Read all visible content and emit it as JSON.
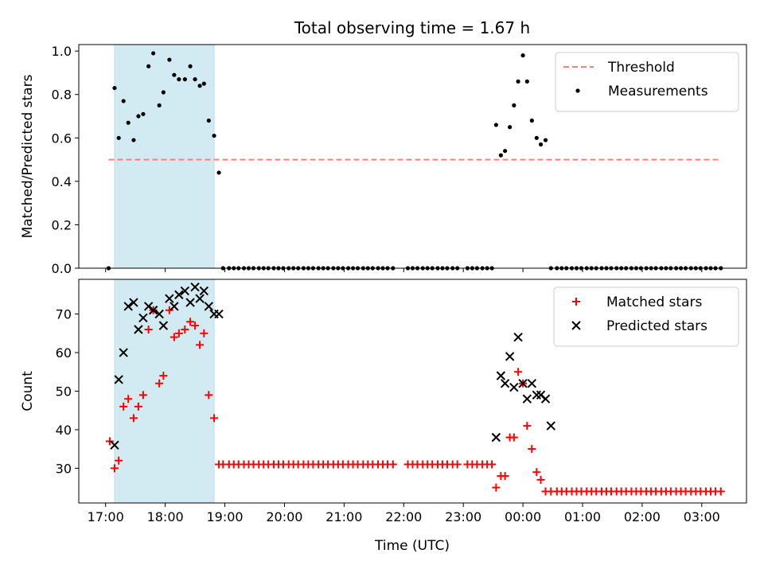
{
  "figure": {
    "title": "Total observing time = 1.67 h",
    "xlabel": "Time (UTC)",
    "xticklabels": [
      "17:00",
      "18:00",
      "19:00",
      "20:00",
      "21:00",
      "22:00",
      "23:00",
      "00:00",
      "01:00",
      "02:00",
      "03:00"
    ]
  },
  "chart_data": [
    {
      "type": "scatter",
      "ylabel": "Matched/Predicted stars",
      "xlim": [
        16.55,
        27.75
      ],
      "ylim": [
        0,
        1.03
      ],
      "yticks": [
        0.0,
        0.2,
        0.4,
        0.6,
        0.8,
        1.0
      ],
      "yticklabels": [
        "0.0",
        "0.2",
        "0.4",
        "0.6",
        "0.8",
        "1.0"
      ],
      "legend_position": "top-right",
      "shaded_span": {
        "x0": 17.15,
        "x1": 18.82,
        "color": "#add8e6"
      },
      "threshold": {
        "name": "Threshold",
        "y": 0.5,
        "x0": 17.05,
        "x1": 27.3,
        "color": "#ff7f7f",
        "style": "dashed"
      },
      "series": [
        {
          "name": "Measurements",
          "marker": "dot",
          "color": "#000000",
          "x": [
            17.05,
            17.15,
            17.22,
            17.3,
            17.38,
            17.47,
            17.55,
            17.63,
            17.72,
            17.8,
            17.9,
            17.97,
            18.07,
            18.15,
            18.23,
            18.33,
            18.42,
            18.5,
            18.58,
            18.65,
            18.73,
            18.82,
            18.9,
            18.97,
            19.07,
            19.15,
            19.23,
            19.32,
            19.4,
            19.48,
            19.57,
            19.65,
            19.73,
            19.82,
            19.9,
            19.98,
            20.07,
            20.15,
            20.23,
            20.32,
            20.4,
            20.48,
            20.57,
            20.65,
            20.73,
            20.82,
            20.9,
            20.98,
            21.07,
            21.15,
            21.23,
            21.32,
            21.4,
            21.48,
            21.57,
            21.65,
            21.73,
            21.82,
            22.07,
            22.15,
            22.23,
            22.32,
            22.4,
            22.48,
            22.57,
            22.65,
            22.73,
            22.82,
            22.9,
            23.07,
            23.15,
            23.23,
            23.32,
            23.4,
            23.48,
            23.55,
            23.63,
            23.7,
            23.78,
            23.85,
            23.92,
            24.0,
            24.07,
            24.15,
            24.23,
            24.3,
            24.38,
            24.47,
            24.57,
            24.65,
            24.73,
            24.82,
            24.9,
            24.98,
            25.07,
            25.15,
            25.23,
            25.32,
            25.4,
            25.48,
            25.57,
            25.65,
            25.73,
            25.82,
            25.9,
            25.98,
            26.07,
            26.15,
            26.23,
            26.32,
            26.4,
            26.48,
            26.57,
            26.65,
            26.73,
            26.82,
            26.9,
            26.98,
            27.07,
            27.15,
            27.23,
            27.32
          ],
          "y": [
            0.0,
            0.83,
            0.6,
            0.77,
            0.67,
            0.59,
            0.7,
            0.71,
            0.93,
            0.99,
            0.75,
            0.81,
            0.96,
            0.89,
            0.87,
            0.87,
            0.93,
            0.87,
            0.84,
            0.85,
            0.68,
            0.61,
            0.44,
            0.0,
            0.0,
            0.0,
            0.0,
            0.0,
            0.0,
            0.0,
            0.0,
            0.0,
            0.0,
            0.0,
            0.0,
            0.0,
            0.0,
            0.0,
            0.0,
            0.0,
            0.0,
            0.0,
            0.0,
            0.0,
            0.0,
            0.0,
            0.0,
            0.0,
            0.0,
            0.0,
            0.0,
            0.0,
            0.0,
            0.0,
            0.0,
            0.0,
            0.0,
            0.0,
            0.0,
            0.0,
            0.0,
            0.0,
            0.0,
            0.0,
            0.0,
            0.0,
            0.0,
            0.0,
            0.0,
            0.0,
            0.0,
            0.0,
            0.0,
            0.0,
            0.0,
            0.66,
            0.52,
            0.54,
            0.65,
            0.75,
            0.86,
            0.98,
            0.86,
            0.68,
            0.6,
            0.57,
            0.59,
            0.0,
            0.0,
            0.0,
            0.0,
            0.0,
            0.0,
            0.0,
            0.0,
            0.0,
            0.0,
            0.0,
            0.0,
            0.0,
            0.0,
            0.0,
            0.0,
            0.0,
            0.0,
            0.0,
            0.0,
            0.0,
            0.0,
            0.0,
            0.0,
            0.0,
            0.0,
            0.0,
            0.0,
            0.0,
            0.0,
            0.0,
            0.0,
            0.0,
            0.0,
            0.0
          ]
        }
      ]
    },
    {
      "type": "scatter",
      "ylabel": "Count",
      "xlim": [
        16.55,
        27.75
      ],
      "ylim": [
        21,
        79
      ],
      "yticks": [
        30,
        40,
        50,
        60,
        70
      ],
      "yticklabels": [
        "30",
        "40",
        "50",
        "60",
        "70"
      ],
      "legend_position": "top-right",
      "shaded_span": {
        "x0": 17.15,
        "x1": 18.82,
        "color": "#add8e6"
      },
      "series": [
        {
          "name": "Matched stars",
          "marker": "plus",
          "color": "#ff0000",
          "x": [
            17.07,
            17.15,
            17.22,
            17.3,
            17.38,
            17.47,
            17.55,
            17.63,
            17.72,
            17.8,
            17.9,
            17.97,
            18.07,
            18.15,
            18.23,
            18.33,
            18.42,
            18.5,
            18.58,
            18.65,
            18.73,
            18.82,
            18.9,
            18.97,
            19.07,
            19.15,
            19.23,
            19.32,
            19.4,
            19.48,
            19.57,
            19.65,
            19.73,
            19.82,
            19.9,
            19.98,
            20.07,
            20.15,
            20.23,
            20.32,
            20.4,
            20.48,
            20.57,
            20.65,
            20.73,
            20.82,
            20.9,
            20.98,
            21.07,
            21.15,
            21.23,
            21.32,
            21.4,
            21.48,
            21.57,
            21.65,
            21.73,
            21.82,
            22.07,
            22.15,
            22.23,
            22.32,
            22.4,
            22.48,
            22.57,
            22.65,
            22.73,
            22.82,
            22.9,
            23.07,
            23.15,
            23.23,
            23.32,
            23.4,
            23.48,
            23.55,
            23.63,
            23.7,
            23.78,
            23.85,
            23.92,
            24.0,
            24.07,
            24.15,
            24.23,
            24.3,
            24.38,
            24.47,
            24.57,
            24.65,
            24.73,
            24.82,
            24.9,
            24.98,
            25.07,
            25.15,
            25.23,
            25.32,
            25.4,
            25.48,
            25.57,
            25.65,
            25.73,
            25.82,
            25.9,
            25.98,
            26.07,
            26.15,
            26.23,
            26.32,
            26.4,
            26.48,
            26.57,
            26.65,
            26.73,
            26.82,
            26.9,
            26.98,
            27.07,
            27.15,
            27.23,
            27.32
          ],
          "y": [
            37,
            30,
            32,
            46,
            48,
            43,
            46,
            49,
            66,
            71,
            52,
            54,
            71,
            64,
            65,
            66,
            68,
            67,
            62,
            65,
            49,
            43,
            31,
            31,
            31,
            31,
            31,
            31,
            31,
            31,
            31,
            31,
            31,
            31,
            31,
            31,
            31,
            31,
            31,
            31,
            31,
            31,
            31,
            31,
            31,
            31,
            31,
            31,
            31,
            31,
            31,
            31,
            31,
            31,
            31,
            31,
            31,
            31,
            31,
            31,
            31,
            31,
            31,
            31,
            31,
            31,
            31,
            31,
            31,
            31,
            31,
            31,
            31,
            31,
            31,
            25,
            28,
            28,
            38,
            38,
            55,
            52,
            41,
            35,
            29,
            27,
            24,
            24,
            24,
            24,
            24,
            24,
            24,
            24,
            24,
            24,
            24,
            24,
            24,
            24,
            24,
            24,
            24,
            24,
            24,
            24,
            24,
            24,
            24,
            24,
            24,
            24,
            24,
            24,
            24,
            24,
            24,
            24,
            24,
            24,
            24,
            24
          ]
        },
        {
          "name": "Predicted stars",
          "marker": "x",
          "color": "#000000",
          "x": [
            17.15,
            17.22,
            17.3,
            17.38,
            17.47,
            17.55,
            17.63,
            17.72,
            17.8,
            17.9,
            17.97,
            18.07,
            18.15,
            18.23,
            18.33,
            18.42,
            18.5,
            18.58,
            18.65,
            18.73,
            18.82,
            18.9,
            23.55,
            23.63,
            23.7,
            23.78,
            23.85,
            23.92,
            24.0,
            24.07,
            24.15,
            24.23,
            24.3,
            24.38,
            24.47
          ],
          "y": [
            36,
            53,
            60,
            72,
            73,
            66,
            69,
            72,
            71,
            70,
            67,
            74,
            72,
            75,
            76,
            73,
            77,
            74,
            76,
            72,
            70,
            70,
            38,
            54,
            52,
            59,
            51,
            64,
            52,
            48,
            52,
            49,
            49,
            48,
            41
          ]
        }
      ]
    }
  ]
}
